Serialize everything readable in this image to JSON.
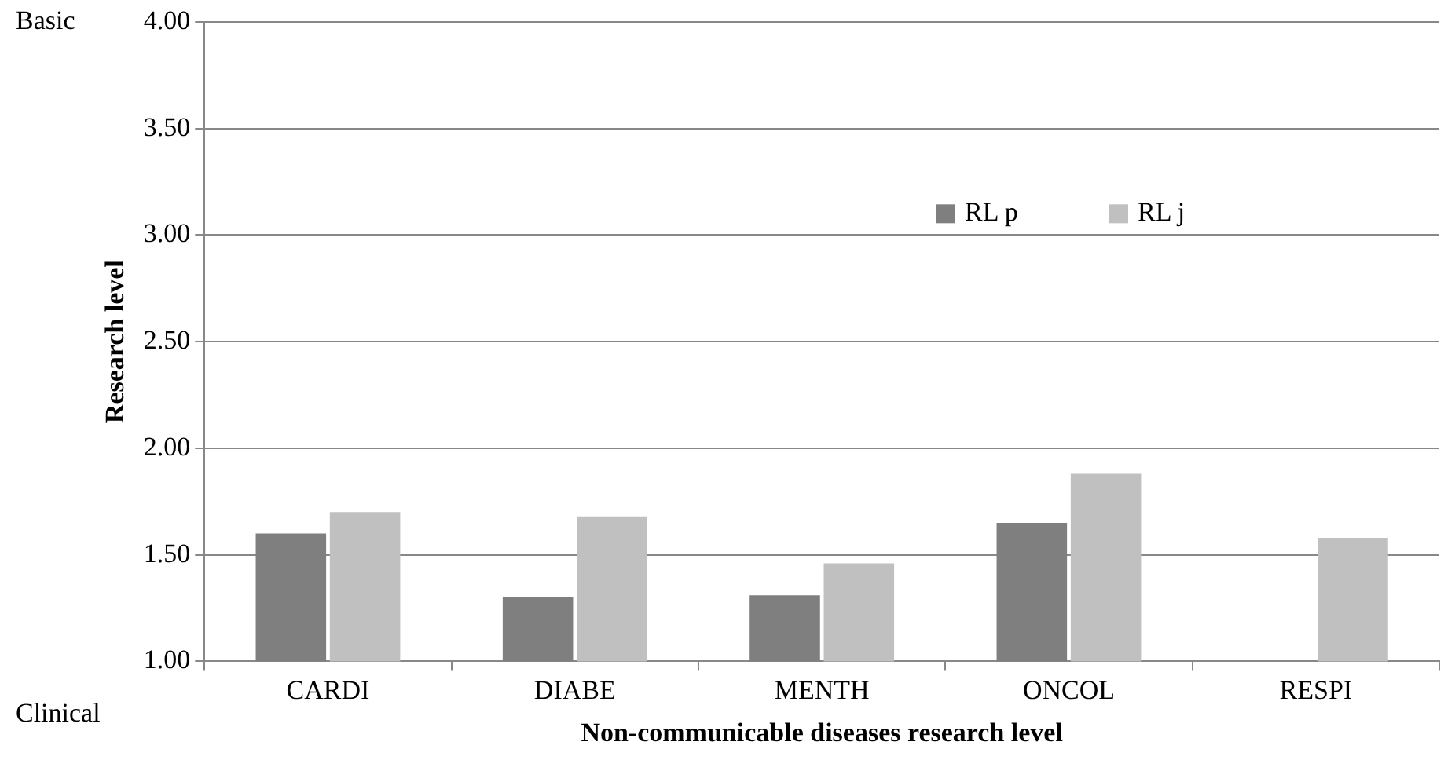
{
  "chart_data": {
    "type": "bar",
    "xlabel": "Non-communicable diseases research level",
    "ylabel": "Research level",
    "categories": [
      "CARDI",
      "DIABE",
      "MENTH",
      "ONCOL",
      "RESPI"
    ],
    "series": [
      {
        "name": "RL p",
        "color": "#7f7f7f",
        "values": [
          1.6,
          1.3,
          1.31,
          1.65,
          null
        ]
      },
      {
        "name": "RL j",
        "color": "#c0c0c0",
        "values": [
          1.7,
          1.68,
          1.46,
          1.88,
          1.58
        ]
      }
    ],
    "ylim": [
      1,
      4
    ],
    "yticks": [
      {
        "value": 1,
        "label": "1.00"
      },
      {
        "value": 1.5,
        "label": "1.50"
      },
      {
        "value": 2,
        "label": "2.00"
      },
      {
        "value": 2.5,
        "label": "2.50"
      },
      {
        "value": 3,
        "label": "3.00"
      },
      {
        "value": 3.5,
        "label": "3.50"
      },
      {
        "value": 4,
        "label": "4.00"
      }
    ],
    "annotations": [
      "Basic",
      "Clinical"
    ],
    "grid": "y",
    "legend": "top right"
  }
}
